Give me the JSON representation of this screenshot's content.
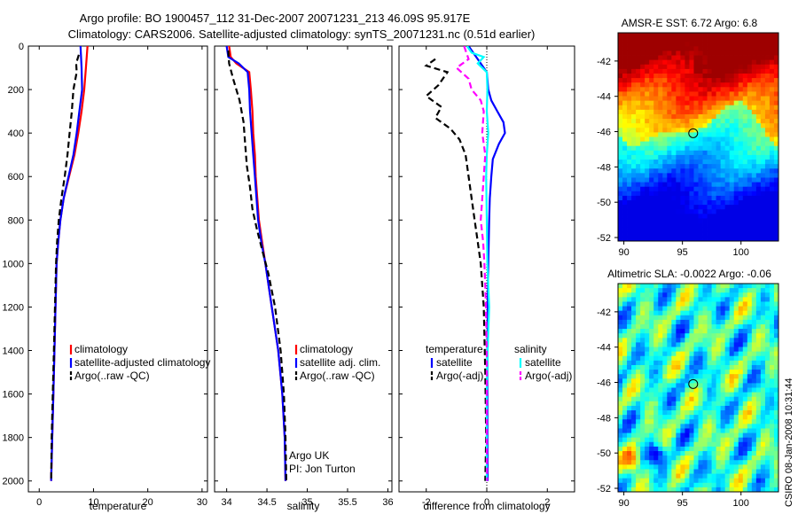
{
  "title_line1": "Argo profile: BO 1900457_112 31-Dec-2007 20071231_213 46.09S 95.917E",
  "title_line2": "Climatology: CARS2006. Satellite-adjusted climatology: synTS_20071231.nc (0.51d earlier)",
  "side_stamp": "CSIRO 08-Jan-2008 10:31:44",
  "colors": {
    "red": "#ff0000",
    "blue": "#0000ff",
    "black": "#000000",
    "cyan": "#00ffff",
    "magenta": "#ff00ff"
  },
  "chart_data": [
    {
      "type": "line",
      "xlabel": "temperature",
      "ylabel": "",
      "xlim": [
        -2,
        31
      ],
      "ylim": [
        0,
        2050
      ],
      "xticks": [
        0,
        10,
        20,
        30
      ],
      "yticks": [
        0,
        200,
        400,
        600,
        800,
        1000,
        1200,
        1400,
        1600,
        1800,
        2000
      ],
      "legend": {
        "entries": [
          {
            "label": "climatology",
            "color": "red"
          },
          {
            "label": "satellite-adjusted climatology",
            "color": "blue"
          },
          {
            "label": "Argo(..raw -QC)",
            "color": "black"
          }
        ]
      },
      "series": [
        {
          "name": "climatology",
          "color": "red",
          "dash": "solid",
          "points": [
            [
              8.9,
              0
            ],
            [
              8.6,
              100
            ],
            [
              8.3,
              200
            ],
            [
              7.8,
              300
            ],
            [
              7.2,
              400
            ],
            [
              6.5,
              500
            ],
            [
              5.5,
              600
            ],
            [
              4.5,
              700
            ],
            [
              3.9,
              800
            ],
            [
              3.5,
              900
            ],
            [
              3.2,
              1000
            ],
            [
              3.0,
              1200
            ],
            [
              2.8,
              1400
            ],
            [
              2.6,
              1600
            ],
            [
              2.4,
              1800
            ],
            [
              2.2,
              2000
            ]
          ]
        },
        {
          "name": "satellite-adjusted climatology",
          "color": "blue",
          "dash": "solid",
          "points": [
            [
              7.6,
              0
            ],
            [
              7.8,
              100
            ],
            [
              7.9,
              200
            ],
            [
              7.4,
              300
            ],
            [
              6.9,
              400
            ],
            [
              6.3,
              500
            ],
            [
              5.4,
              600
            ],
            [
              4.5,
              700
            ],
            [
              3.9,
              800
            ],
            [
              3.5,
              900
            ],
            [
              3.2,
              1000
            ],
            [
              3.0,
              1200
            ],
            [
              2.8,
              1400
            ],
            [
              2.6,
              1600
            ],
            [
              2.4,
              1800
            ],
            [
              2.2,
              2000
            ]
          ]
        },
        {
          "name": "Argo(..raw -QC)",
          "color": "black",
          "dash": "dash",
          "points": [
            [
              7.3,
              40
            ],
            [
              6.8,
              80
            ],
            [
              6.9,
              120
            ],
            [
              6.3,
              200
            ],
            [
              6.0,
              300
            ],
            [
              5.6,
              400
            ],
            [
              5.2,
              500
            ],
            [
              4.7,
              600
            ],
            [
              4.1,
              700
            ],
            [
              3.6,
              800
            ],
            [
              3.3,
              900
            ],
            [
              3.1,
              1000
            ],
            [
              2.9,
              1200
            ],
            [
              2.7,
              1400
            ],
            [
              2.5,
              1600
            ],
            [
              2.3,
              1800
            ],
            [
              2.2,
              2000
            ]
          ]
        }
      ]
    },
    {
      "type": "line",
      "xlabel": "salinity",
      "ylabel": "",
      "xlim": [
        33.85,
        36.05
      ],
      "ylim": [
        0,
        2050
      ],
      "xticks": [
        34,
        34.5,
        35,
        35.5,
        36
      ],
      "yticks": [
        0,
        200,
        400,
        600,
        800,
        1000,
        1200,
        1400,
        1600,
        1800,
        2000
      ],
      "legend": {
        "entries": [
          {
            "label": "climatology",
            "color": "red"
          },
          {
            "label": "satellite adj. clim.",
            "color": "blue"
          },
          {
            "label": "Argo(..raw -QC)",
            "color": "black"
          }
        ]
      },
      "annotations": [
        "Argo UK",
        "PI: Jon Turton"
      ],
      "series": [
        {
          "name": "climatology",
          "color": "red",
          "dash": "solid",
          "points": [
            [
              34.03,
              0
            ],
            [
              34.05,
              50
            ],
            [
              34.12,
              80
            ],
            [
              34.28,
              120
            ],
            [
              34.3,
              200
            ],
            [
              34.32,
              300
            ],
            [
              34.33,
              400
            ],
            [
              34.35,
              500
            ],
            [
              34.36,
              600
            ],
            [
              34.38,
              700
            ],
            [
              34.4,
              800
            ],
            [
              34.44,
              900
            ],
            [
              34.48,
              1000
            ],
            [
              34.56,
              1200
            ],
            [
              34.64,
              1400
            ],
            [
              34.69,
              1600
            ],
            [
              34.72,
              1800
            ],
            [
              34.73,
              2000
            ]
          ]
        },
        {
          "name": "satellite adj. clim.",
          "color": "blue",
          "dash": "solid",
          "points": [
            [
              34.0,
              0
            ],
            [
              34.02,
              50
            ],
            [
              34.15,
              80
            ],
            [
              34.26,
              120
            ],
            [
              34.28,
              200
            ],
            [
              34.29,
              300
            ],
            [
              34.31,
              400
            ],
            [
              34.33,
              500
            ],
            [
              34.35,
              600
            ],
            [
              34.37,
              700
            ],
            [
              34.39,
              800
            ],
            [
              34.43,
              900
            ],
            [
              34.48,
              1000
            ],
            [
              34.56,
              1200
            ],
            [
              34.64,
              1400
            ],
            [
              34.69,
              1600
            ],
            [
              34.72,
              1800
            ],
            [
              34.73,
              2000
            ]
          ]
        },
        {
          "name": "Argo(..raw -QC)",
          "color": "black",
          "dash": "dash",
          "points": [
            [
              34.02,
              20
            ],
            [
              34.03,
              80
            ],
            [
              34.08,
              150
            ],
            [
              34.16,
              250
            ],
            [
              34.21,
              350
            ],
            [
              34.23,
              450
            ],
            [
              34.25,
              550
            ],
            [
              34.29,
              650
            ],
            [
              34.32,
              750
            ],
            [
              34.38,
              850
            ],
            [
              34.45,
              950
            ],
            [
              34.52,
              1050
            ],
            [
              34.6,
              1200
            ],
            [
              34.67,
              1400
            ],
            [
              34.71,
              1600
            ],
            [
              34.73,
              1800
            ],
            [
              34.74,
              2000
            ]
          ]
        }
      ]
    },
    {
      "type": "line",
      "xlabel": "difference from climatology",
      "ylabel": "",
      "xlim": [
        -2.9,
        2.9
      ],
      "ylim": [
        0,
        2050
      ],
      "xticks": [
        -2,
        0,
        2
      ],
      "yticks": [
        0,
        200,
        400,
        600,
        800,
        1000,
        1200,
        1400,
        1600,
        1800,
        2000
      ],
      "legend": {
        "headers": [
          "temperature",
          "salinity"
        ],
        "entries": [
          {
            "label": "satellite",
            "color": "blue"
          },
          {
            "label": "Argo(-adj)",
            "color": "black"
          },
          {
            "label": "satellite",
            "color": "cyan"
          },
          {
            "label": "Argo(-adj)",
            "color": "magenta"
          }
        ]
      },
      "series": [
        {
          "name": "temperature satellite",
          "color": "blue",
          "dash": "solid",
          "points": [
            [
              -0.6,
              0
            ],
            [
              -0.3,
              60
            ],
            [
              0.0,
              120
            ],
            [
              0.05,
              200
            ],
            [
              0.15,
              250
            ],
            [
              0.35,
              300
            ],
            [
              0.55,
              350
            ],
            [
              0.6,
              400
            ],
            [
              0.4,
              450
            ],
            [
              0.2,
              520
            ],
            [
              0.15,
              600
            ],
            [
              0.1,
              700
            ],
            [
              0.08,
              800
            ],
            [
              0.05,
              1000
            ],
            [
              0.03,
              1200
            ],
            [
              0.02,
              1500
            ],
            [
              0.02,
              1800
            ],
            [
              0.03,
              2000
            ]
          ]
        },
        {
          "name": "temperature Argo(-adj)",
          "color": "black",
          "dash": "dash",
          "points": [
            [
              -1.7,
              60
            ],
            [
              -2.0,
              90
            ],
            [
              -1.3,
              120
            ],
            [
              -1.6,
              180
            ],
            [
              -2.0,
              230
            ],
            [
              -1.5,
              280
            ],
            [
              -1.7,
              330
            ],
            [
              -1.2,
              380
            ],
            [
              -0.9,
              430
            ],
            [
              -0.7,
              500
            ],
            [
              -0.6,
              600
            ],
            [
              -0.5,
              700
            ],
            [
              -0.4,
              800
            ],
            [
              -0.3,
              900
            ],
            [
              -0.2,
              1000
            ],
            [
              -0.1,
              1200
            ],
            [
              -0.05,
              1500
            ],
            [
              -0.02,
              1800
            ],
            [
              -0.05,
              2000
            ]
          ]
        },
        {
          "name": "salinity satellite",
          "color": "cyan",
          "dash": "solid",
          "points": [
            [
              -0.65,
              0
            ],
            [
              -0.5,
              30
            ],
            [
              -0.1,
              50
            ],
            [
              -0.3,
              80
            ],
            [
              0.0,
              120
            ],
            [
              0.02,
              200
            ],
            [
              0.0,
              300
            ],
            [
              0.05,
              400
            ],
            [
              0.0,
              500
            ],
            [
              -0.02,
              600
            ],
            [
              0.0,
              800
            ],
            [
              0.02,
              1000
            ],
            [
              0.05,
              1100
            ],
            [
              0.08,
              1200
            ],
            [
              0.03,
              1400
            ],
            [
              0.0,
              1600
            ],
            [
              0.0,
              1800
            ],
            [
              0.0,
              2000
            ]
          ]
        },
        {
          "name": "salinity Argo(-adj)",
          "color": "magenta",
          "dash": "dash",
          "points": [
            [
              -0.75,
              0
            ],
            [
              -0.6,
              60
            ],
            [
              -1.0,
              100
            ],
            [
              -0.6,
              150
            ],
            [
              -0.5,
              200
            ],
            [
              -0.2,
              250
            ],
            [
              -0.1,
              300
            ],
            [
              -0.15,
              400
            ],
            [
              -0.05,
              500
            ],
            [
              -0.1,
              600
            ],
            [
              -0.15,
              700
            ],
            [
              -0.2,
              800
            ],
            [
              -0.12,
              900
            ],
            [
              -0.08,
              1000
            ],
            [
              -0.05,
              1100
            ],
            [
              -0.03,
              1200
            ],
            [
              0.0,
              1400
            ],
            [
              0.0,
              1600
            ],
            [
              0.0,
              1800
            ],
            [
              0.01,
              2000
            ]
          ]
        }
      ]
    },
    {
      "type": "heatmap",
      "title": "AMSR-E SST: 6.72 Argo: 6.8",
      "xlim": [
        89.5,
        103.2
      ],
      "ylim": [
        -52.2,
        -40.4
      ],
      "xticks": [
        90,
        95,
        100
      ],
      "yticks": [
        -42,
        -44,
        -46,
        -48,
        -50,
        -52
      ],
      "marker": {
        "lon": 95.917,
        "lat": -46.09
      },
      "colormap": "jet"
    },
    {
      "type": "heatmap",
      "title": "Altimetric SLA: -0.0022 Argo: -0.06",
      "xlim": [
        89.5,
        103.2
      ],
      "ylim": [
        -52.2,
        -40.4
      ],
      "xticks": [
        90,
        95,
        100
      ],
      "yticks": [
        -42,
        -44,
        -46,
        -48,
        -50,
        -52
      ],
      "marker": {
        "lon": 95.917,
        "lat": -46.09
      },
      "colormap": "jet"
    }
  ]
}
